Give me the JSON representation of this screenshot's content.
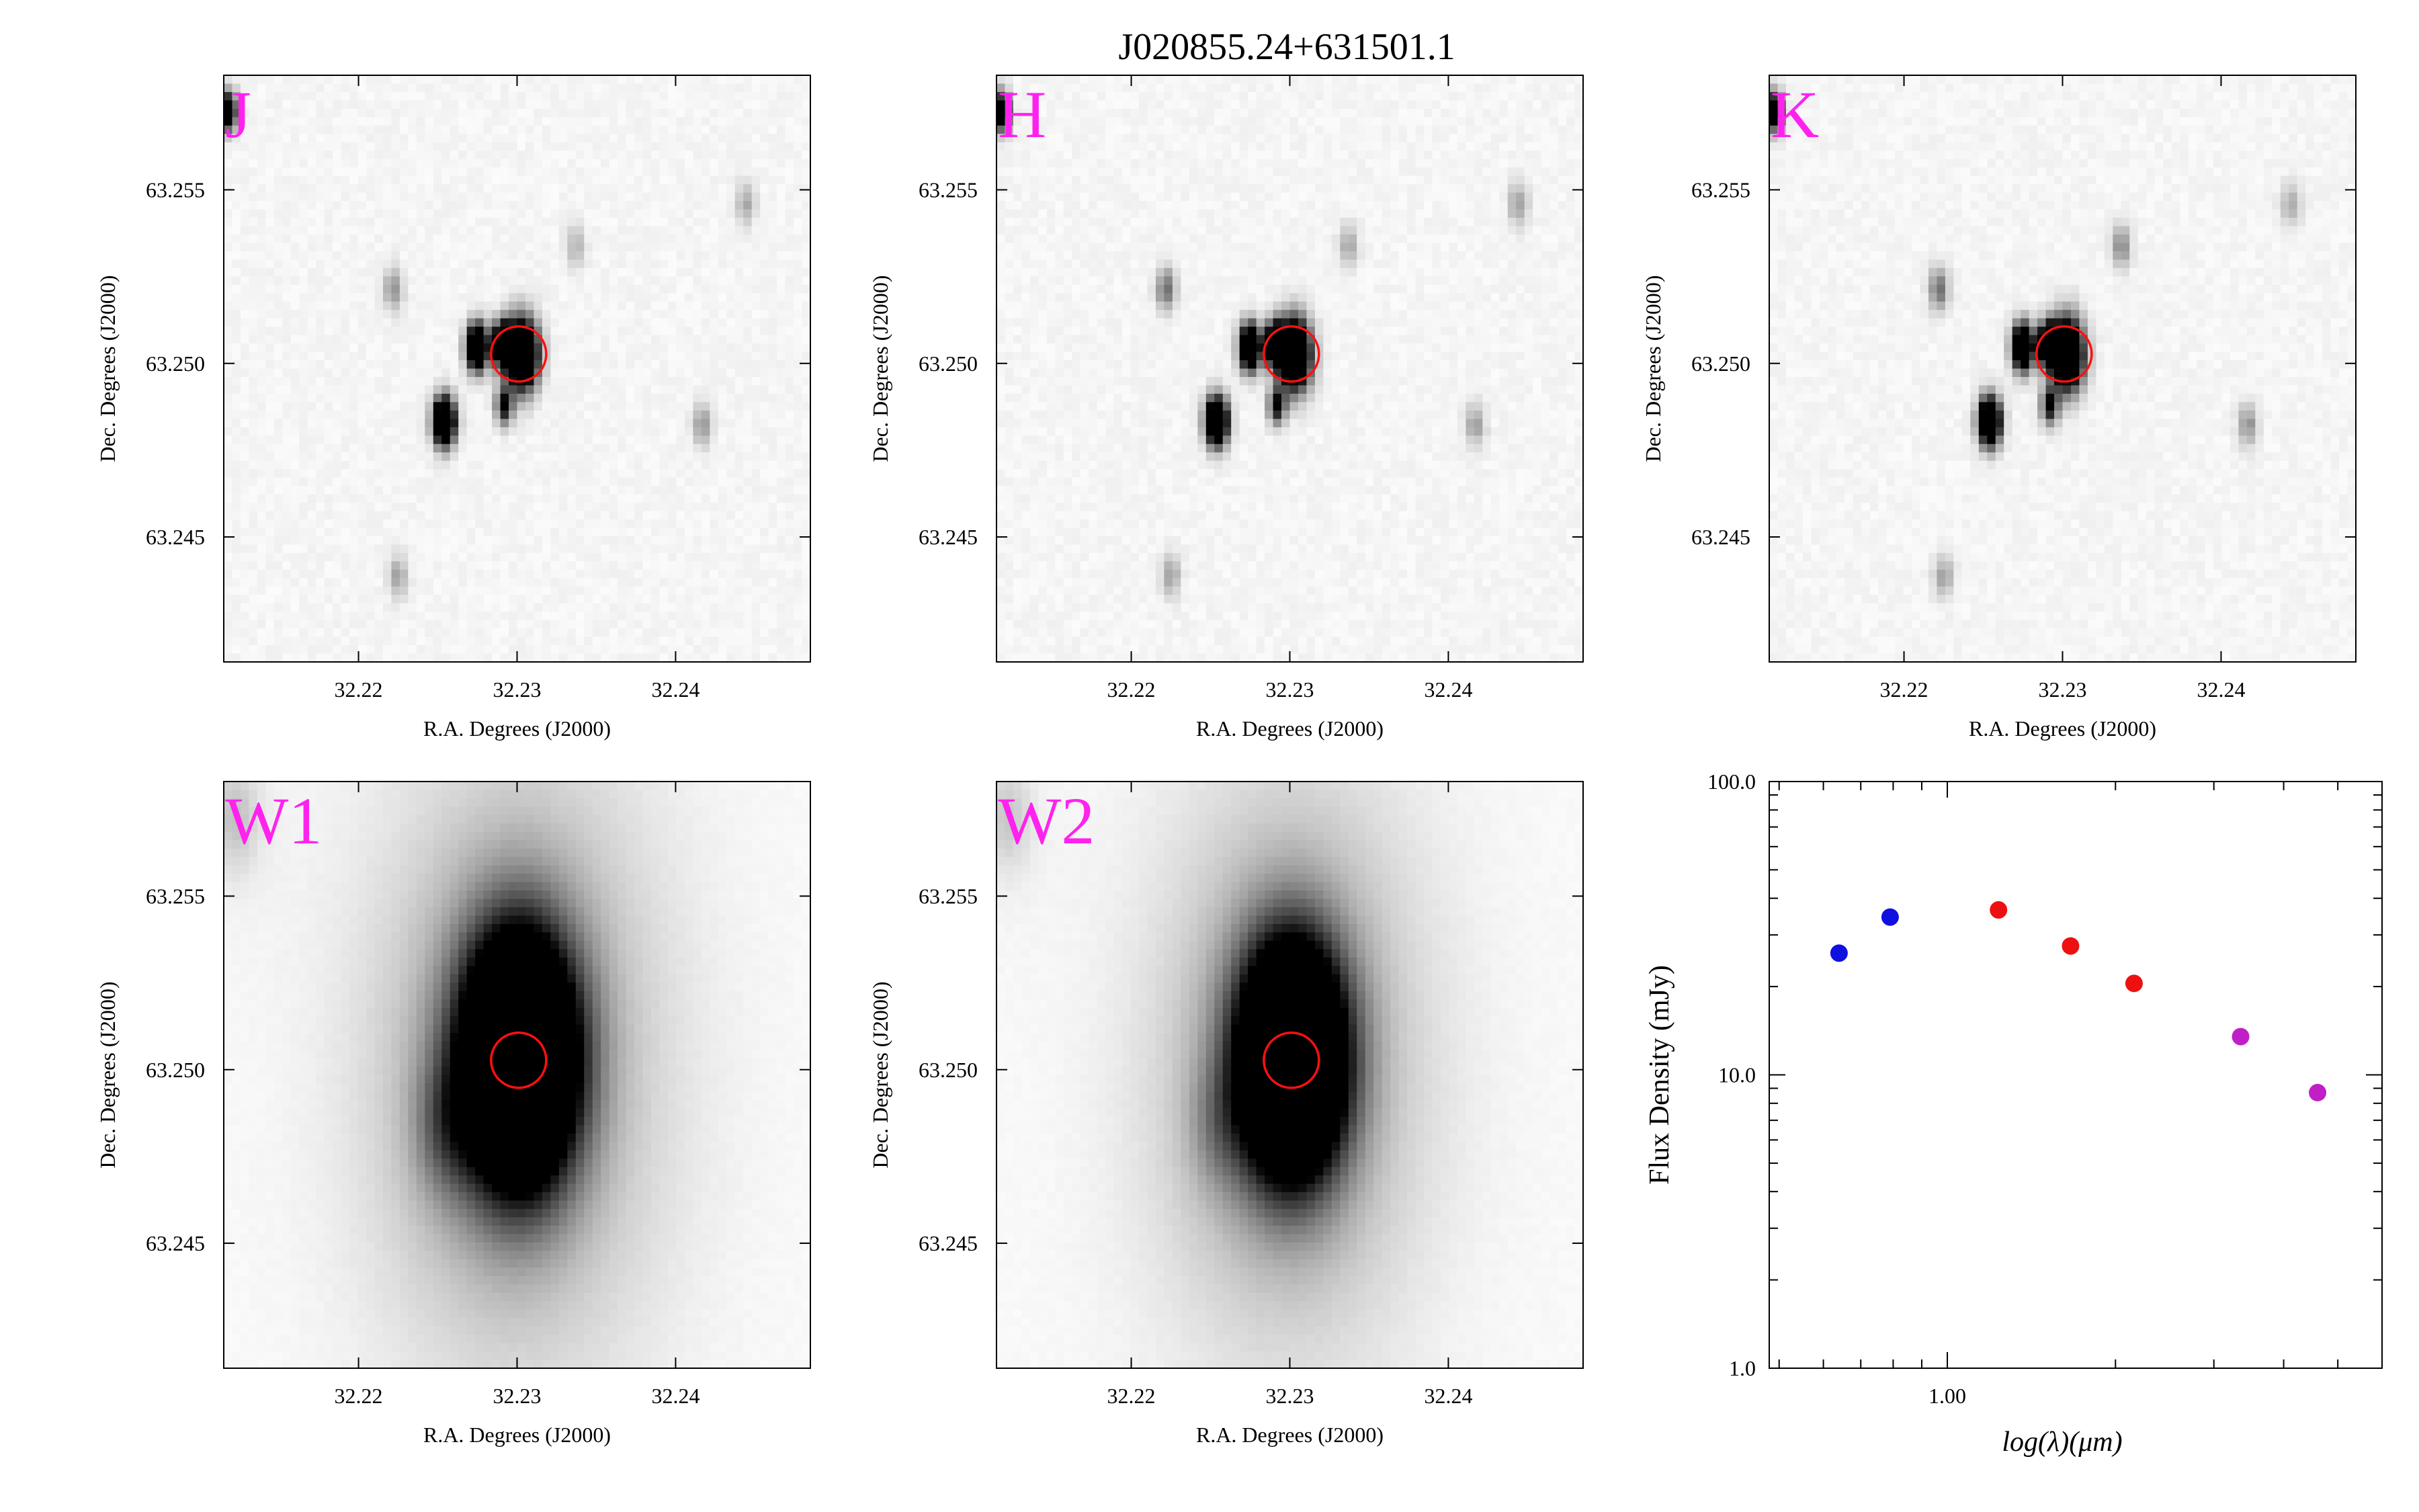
{
  "title": "J020855.24+631501.1",
  "colors": {
    "band_label": "#ff22ee",
    "aperture": "#ff1010",
    "axis": "#000000",
    "sed_blue": "#1010e0",
    "sed_red": "#ee1010",
    "sed_magenta": "#c01fc8"
  },
  "image_panels": [
    {
      "band": "J",
      "xlabel": "R.A. Degrees (J2000)",
      "ylabel": "Dec. Degrees (J2000)",
      "xticks": [
        "32.22",
        "32.23",
        "32.24"
      ],
      "yticks": [
        "63.255",
        "63.250",
        "63.245"
      ],
      "xrange": [
        32.2115,
        32.2485
      ],
      "yrange": [
        63.2414,
        63.2583
      ],
      "target": {
        "ra": 32.2301,
        "dec": 63.25027
      },
      "sources": [
        {
          "ra": 32.2303,
          "dec": 63.25027,
          "intensity": 1.0,
          "size": 0.0013,
          "kind": "point"
        },
        {
          "ra": 32.2275,
          "dec": 63.25047,
          "intensity": 0.95,
          "size": 0.00085,
          "kind": "point"
        },
        {
          "ra": 32.2291,
          "dec": 63.25054,
          "intensity": 0.9,
          "size": 0.0008,
          "kind": "point"
        },
        {
          "ra": 32.2254,
          "dec": 63.24833,
          "intensity": 0.95,
          "size": 0.0009,
          "kind": "point"
        },
        {
          "ra": 32.2292,
          "dec": 63.24878,
          "intensity": 0.45,
          "size": 0.0007,
          "kind": "point"
        },
        {
          "ra": 32.2222,
          "dec": 63.25215,
          "intensity": 0.18,
          "size": 0.0008,
          "kind": "point"
        },
        {
          "ra": 32.2337,
          "dec": 63.25337,
          "intensity": 0.12,
          "size": 0.0008,
          "kind": "point"
        },
        {
          "ra": 32.2444,
          "dec": 63.25458,
          "intensity": 0.14,
          "size": 0.0008,
          "kind": "point"
        },
        {
          "ra": 32.2417,
          "dec": 63.24823,
          "intensity": 0.18,
          "size": 0.0008,
          "kind": "point"
        },
        {
          "ra": 32.2225,
          "dec": 63.24387,
          "intensity": 0.15,
          "size": 0.0008,
          "kind": "point"
        },
        {
          "ra": 32.2118,
          "dec": 63.25726,
          "intensity": 0.7,
          "size": 0.0007,
          "kind": "point"
        }
      ]
    },
    {
      "band": "H",
      "xlabel": "R.A. Degrees (J2000)",
      "ylabel": "Dec. Degrees (J2000)",
      "xticks": [
        "32.22",
        "32.23",
        "32.24"
      ],
      "yticks": [
        "63.255",
        "63.250",
        "63.245"
      ],
      "xrange": [
        32.2115,
        32.2485
      ],
      "yrange": [
        63.2414,
        63.2583
      ],
      "target": {
        "ra": 32.2301,
        "dec": 63.25027
      },
      "sources": [
        {
          "ra": 32.2303,
          "dec": 63.25027,
          "intensity": 1.0,
          "size": 0.0013,
          "kind": "point"
        },
        {
          "ra": 32.2275,
          "dec": 63.25047,
          "intensity": 0.95,
          "size": 0.00085,
          "kind": "point"
        },
        {
          "ra": 32.2291,
          "dec": 63.25054,
          "intensity": 0.9,
          "size": 0.0008,
          "kind": "point"
        },
        {
          "ra": 32.2254,
          "dec": 63.24833,
          "intensity": 0.95,
          "size": 0.0009,
          "kind": "point"
        },
        {
          "ra": 32.2292,
          "dec": 63.24878,
          "intensity": 0.45,
          "size": 0.0007,
          "kind": "point"
        },
        {
          "ra": 32.2222,
          "dec": 63.25215,
          "intensity": 0.25,
          "size": 0.0008,
          "kind": "point"
        },
        {
          "ra": 32.2337,
          "dec": 63.25337,
          "intensity": 0.14,
          "size": 0.0008,
          "kind": "point"
        },
        {
          "ra": 32.2444,
          "dec": 63.25458,
          "intensity": 0.16,
          "size": 0.0008,
          "kind": "point"
        },
        {
          "ra": 32.2417,
          "dec": 63.24823,
          "intensity": 0.16,
          "size": 0.0008,
          "kind": "point"
        },
        {
          "ra": 32.2225,
          "dec": 63.24387,
          "intensity": 0.15,
          "size": 0.0008,
          "kind": "point"
        },
        {
          "ra": 32.2118,
          "dec": 63.25726,
          "intensity": 0.7,
          "size": 0.0007,
          "kind": "point"
        }
      ]
    },
    {
      "band": "K",
      "xlabel": "R.A. Degrees (J2000)",
      "ylabel": "Dec. Degrees (J2000)",
      "xticks": [
        "32.22",
        "32.23",
        "32.24"
      ],
      "yticks": [
        "63.255",
        "63.250",
        "63.245"
      ],
      "xrange": [
        32.2115,
        32.2485
      ],
      "yrange": [
        63.2414,
        63.2583
      ],
      "target": {
        "ra": 32.2301,
        "dec": 63.25027
      },
      "sources": [
        {
          "ra": 32.2303,
          "dec": 63.25027,
          "intensity": 1.0,
          "size": 0.0013,
          "kind": "point"
        },
        {
          "ra": 32.2275,
          "dec": 63.25047,
          "intensity": 0.95,
          "size": 0.00085,
          "kind": "point"
        },
        {
          "ra": 32.2291,
          "dec": 63.25054,
          "intensity": 0.9,
          "size": 0.0008,
          "kind": "point"
        },
        {
          "ra": 32.2254,
          "dec": 63.24833,
          "intensity": 0.95,
          "size": 0.0009,
          "kind": "point"
        },
        {
          "ra": 32.2292,
          "dec": 63.24878,
          "intensity": 0.45,
          "size": 0.0007,
          "kind": "point"
        },
        {
          "ra": 32.2222,
          "dec": 63.25215,
          "intensity": 0.25,
          "size": 0.0008,
          "kind": "point"
        },
        {
          "ra": 32.2337,
          "dec": 63.25337,
          "intensity": 0.2,
          "size": 0.0008,
          "kind": "point"
        },
        {
          "ra": 32.2444,
          "dec": 63.25458,
          "intensity": 0.14,
          "size": 0.0008,
          "kind": "point"
        },
        {
          "ra": 32.2417,
          "dec": 63.24823,
          "intensity": 0.18,
          "size": 0.0008,
          "kind": "point"
        },
        {
          "ra": 32.2225,
          "dec": 63.24387,
          "intensity": 0.15,
          "size": 0.0008,
          "kind": "point"
        },
        {
          "ra": 32.2118,
          "dec": 63.25726,
          "intensity": 0.7,
          "size": 0.0007,
          "kind": "point"
        }
      ]
    },
    {
      "band": "W1",
      "xlabel": "R.A. Degrees (J2000)",
      "ylabel": "Dec. Degrees (J2000)",
      "xticks": [
        "32.22",
        "32.23",
        "32.24"
      ],
      "yticks": [
        "63.255",
        "63.250",
        "63.245"
      ],
      "xrange": [
        32.2115,
        32.2485
      ],
      "yrange": [
        63.2414,
        63.2583
      ],
      "target": {
        "ra": 32.2301,
        "dec": 63.25027
      },
      "sources": [
        {
          "ra": 32.2301,
          "dec": 63.25027,
          "intensity": 1.0,
          "size": 0.0052,
          "kind": "wise"
        },
        {
          "ra": 32.2254,
          "dec": 63.24833,
          "intensity": 0.12,
          "size": 0.0028,
          "kind": "wise"
        },
        {
          "ra": 32.2122,
          "dec": 63.25726,
          "intensity": 0.08,
          "size": 0.0022,
          "kind": "wise"
        }
      ]
    },
    {
      "band": "W2",
      "xlabel": "R.A. Degrees (J2000)",
      "ylabel": "Dec. Degrees (J2000)",
      "xticks": [
        "32.22",
        "32.23",
        "32.24"
      ],
      "yticks": [
        "63.255",
        "63.250",
        "63.245"
      ],
      "xrange": [
        32.2115,
        32.2485
      ],
      "yrange": [
        63.2414,
        63.2583
      ],
      "target": {
        "ra": 32.2301,
        "dec": 63.25027
      },
      "sources": [
        {
          "ra": 32.2301,
          "dec": 63.25027,
          "intensity": 1.0,
          "size": 0.0048,
          "kind": "wise"
        },
        {
          "ra": 32.2254,
          "dec": 63.24833,
          "intensity": 0.08,
          "size": 0.0026,
          "kind": "wise"
        },
        {
          "ra": 32.2122,
          "dec": 63.25726,
          "intensity": 0.07,
          "size": 0.0022,
          "kind": "wise"
        }
      ]
    }
  ],
  "chart_data": {
    "type": "scatter",
    "xlabel": "log(λ)(μm)",
    "ylabel": "Flux Density (mJy)",
    "xscale": "log",
    "yscale": "log",
    "xlim": [
      0.48,
      6.0
    ],
    "ylim": [
      1.0,
      100.0
    ],
    "xticklabels": [
      {
        "value": 1.0,
        "label": "1.00"
      }
    ],
    "yticklabels": [
      {
        "value": 1.0,
        "label": "1.0"
      },
      {
        "value": 10.0,
        "label": "10.0"
      },
      {
        "value": 100.0,
        "label": "100.0"
      }
    ],
    "points": [
      {
        "x": 0.64,
        "y": 26.0,
        "color": "#1010e0"
      },
      {
        "x": 0.79,
        "y": 34.5,
        "color": "#1010e0"
      },
      {
        "x": 1.235,
        "y": 36.5,
        "color": "#ee1010"
      },
      {
        "x": 1.662,
        "y": 27.5,
        "color": "#ee1010"
      },
      {
        "x": 2.159,
        "y": 20.5,
        "color": "#ee1010"
      },
      {
        "x": 3.35,
        "y": 13.5,
        "color": "#c01fc8"
      },
      {
        "x": 4.6,
        "y": 8.7,
        "color": "#c01fc8"
      }
    ]
  }
}
